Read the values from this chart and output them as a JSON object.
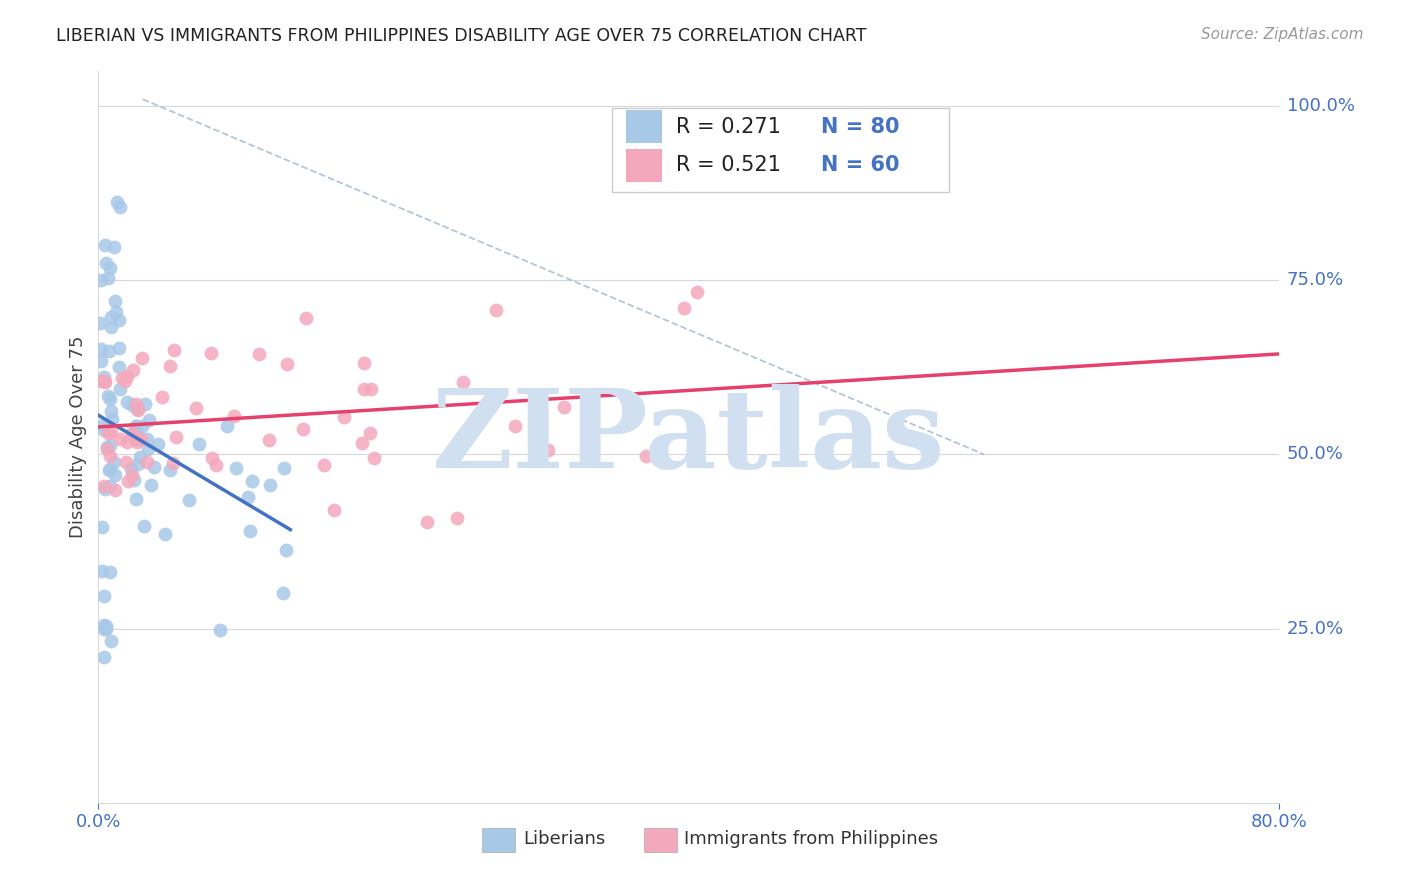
{
  "title": "LIBERIAN VS IMMIGRANTS FROM PHILIPPINES DISABILITY AGE OVER 75 CORRELATION CHART",
  "source": "Source: ZipAtlas.com",
  "ylabel": "Disability Age Over 75",
  "x_min": 0.0,
  "x_max": 0.8,
  "y_min": 0.0,
  "y_max": 1.05,
  "y_ticks": [
    0.25,
    0.5,
    0.75,
    1.0
  ],
  "y_tick_labels": [
    "25.0%",
    "50.0%",
    "75.0%",
    "100.0%"
  ],
  "x_tick_show": [
    0.0,
    0.8
  ],
  "x_tick_labels": [
    "0.0%",
    "80.0%"
  ],
  "liberian_R": 0.271,
  "liberian_N": 80,
  "philippines_R": 0.521,
  "philippines_N": 60,
  "liberian_color": "#a8c8e8",
  "philippines_color": "#f4a8bc",
  "liberian_line_color": "#4472c4",
  "philippines_line_color": "#e8406c",
  "dashed_line_color": "#a0b8d0",
  "tick_color": "#4472c4",
  "grid_color": "#d8d8d8",
  "watermark": "ZIPatlas",
  "watermark_color": "#d0e0f0",
  "title_color": "#222222",
  "source_color": "#999999",
  "ylabel_color": "#444444",
  "background_color": "#ffffff",
  "legend_R1": "R = 0.271",
  "legend_N1": "N = 80",
  "legend_R2": "R = 0.521",
  "legend_N2": "N = 60"
}
